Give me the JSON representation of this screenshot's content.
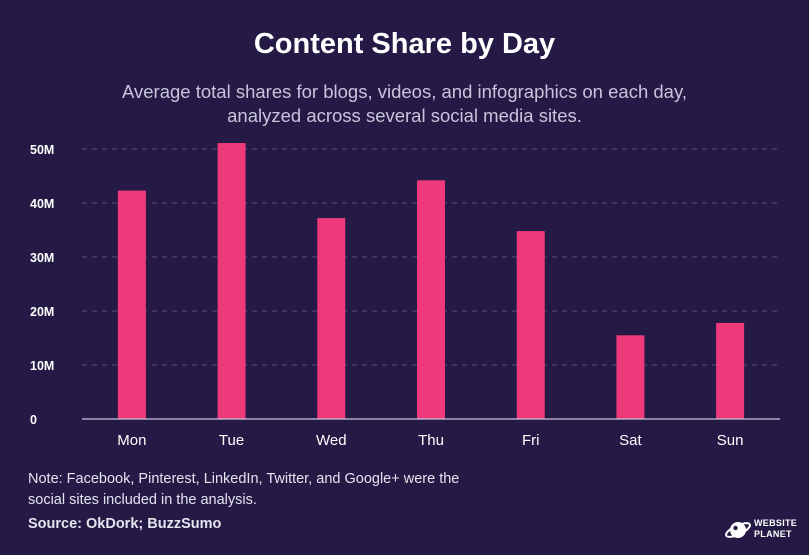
{
  "header": {
    "title": "Content Share by Day",
    "subtitle": "Average total shares for blogs, videos, and infographics on each day, analyzed across several social media sites."
  },
  "chart_data": {
    "type": "bar",
    "title": "Content Share by Day",
    "subtitle": "Average total shares for blogs, videos, and infographics on each day, analyzed across several social media sites.",
    "xlabel": "",
    "ylabel": "",
    "categories": [
      "Mon",
      "Tue",
      "Wed",
      "Thu",
      "Fri",
      "Sat",
      "Sun"
    ],
    "values": [
      42.3,
      51.1,
      37.2,
      44.2,
      34.8,
      15.5,
      17.8
    ],
    "unit": "M",
    "ylim": [
      0,
      50
    ],
    "yticks": [
      0,
      10,
      20,
      30,
      40,
      50
    ],
    "ytick_labels": [
      "0",
      "10M",
      "20M",
      "30M",
      "40M",
      "50M"
    ],
    "grid": true,
    "colors": {
      "bar": "#ee3a7a",
      "grid": "#5a4f86",
      "axis": "#c9c4dc",
      "background": "#241a45"
    }
  },
  "footer": {
    "note": "Note: Facebook, Pinterest, LinkedIn, Twitter, and Google+ were the social sites included in the analysis.",
    "source": "Source: OkDork; BuzzSumo",
    "logo_line1": "WEBSITE",
    "logo_line2": "PLANET",
    "logo_icon": "planet-icon"
  }
}
